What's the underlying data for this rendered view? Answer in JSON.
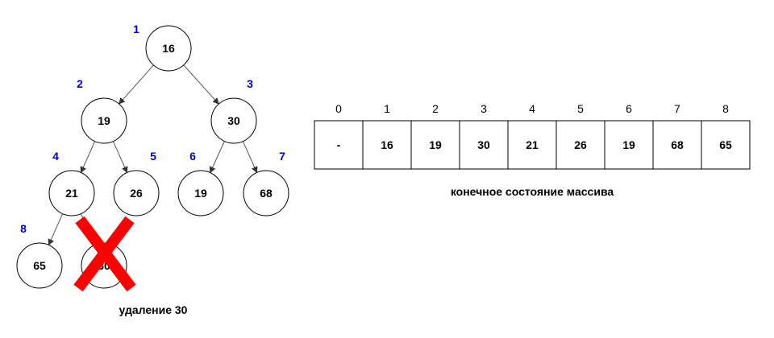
{
  "tree": {
    "nodes": [
      {
        "id": "n1",
        "value": "16",
        "index": "1"
      },
      {
        "id": "n2",
        "value": "19",
        "index": "2"
      },
      {
        "id": "n3",
        "value": "30",
        "index": "3"
      },
      {
        "id": "n4",
        "value": "21",
        "index": "4"
      },
      {
        "id": "n5",
        "value": "26",
        "index": "5"
      },
      {
        "id": "n6",
        "value": "19",
        "index": "6"
      },
      {
        "id": "n7",
        "value": "68",
        "index": "7"
      },
      {
        "id": "n8",
        "value": "65",
        "index": "8"
      },
      {
        "id": "n9",
        "value": "30",
        "index": ""
      }
    ],
    "edges": [
      {
        "from": "n1",
        "to": "n2"
      },
      {
        "from": "n1",
        "to": "n3"
      },
      {
        "from": "n2",
        "to": "n4"
      },
      {
        "from": "n2",
        "to": "n5"
      },
      {
        "from": "n3",
        "to": "n6"
      },
      {
        "from": "n3",
        "to": "n7"
      },
      {
        "from": "n4",
        "to": "n8"
      },
      {
        "from": "n4",
        "to": "n9"
      }
    ],
    "removed_node": "n9",
    "cross_color": "#ff0000",
    "caption": "удаление 30"
  },
  "array": {
    "indices": [
      "0",
      "1",
      "2",
      "3",
      "4",
      "5",
      "6",
      "7",
      "8"
    ],
    "values": [
      "-",
      "16",
      "19",
      "30",
      "21",
      "26",
      "19",
      "68",
      "65"
    ],
    "caption": "конечное состояние массива"
  },
  "colors": {
    "index_label": "#0000cc",
    "edge": "#555555"
  }
}
